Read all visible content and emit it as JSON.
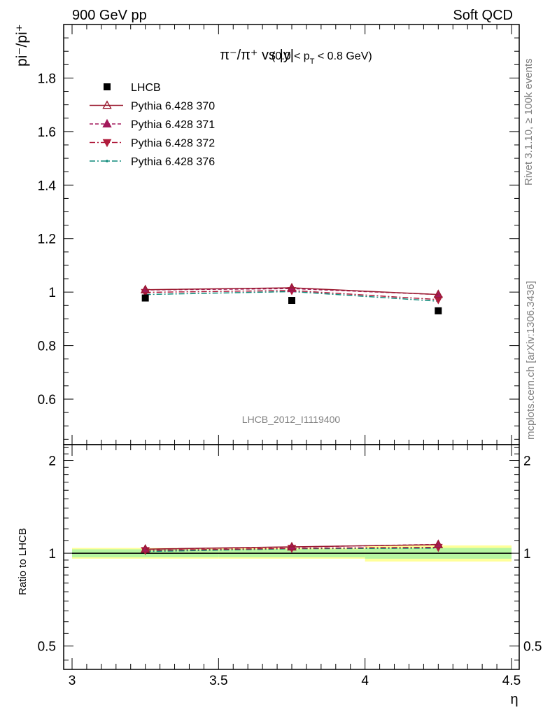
{
  "header": {
    "energy_label": "900 GeV pp",
    "process_label": "Soft QCD"
  },
  "side_text": {
    "rivet": "Rivet 3.1.10, ≥ 100k events",
    "mcplots": "mcplots.cern.ch [arXiv:1306.3436]"
  },
  "analysis_label": "LHCB_2012_I1119400",
  "colors": {
    "data": "#000000",
    "mc_370": "#9b1b30",
    "mc_371": "#a3195b",
    "mc_372": "#b01c3c",
    "mc_376": "#0e8a7a",
    "band_inner": "#b6f5a0",
    "band_outer": "#ffff99"
  },
  "chart_data": [
    {
      "type": "scatter",
      "panel": "main",
      "title": {
        "main": "π⁻/π⁺ vs |y|",
        "range": "(0.0 < p",
        "range_sub": "T",
        "range_tail": " < 0.8 GeV)"
      },
      "ylabel": "pi⁻/pi⁺",
      "xlim": [
        3.0,
        4.5
      ],
      "ylim": [
        0.43,
        2.0
      ],
      "yticks": [
        0.6,
        0.8,
        1.0,
        1.2,
        1.4,
        1.6,
        1.8
      ],
      "ytick_labels": [
        "0.6",
        "0.8",
        "1",
        "1.2",
        "1.4",
        "1.6",
        "1.8"
      ],
      "legend_position": "top-left",
      "x": [
        3.25,
        3.75,
        4.25
      ],
      "series": [
        {
          "name": "LHCB",
          "values": [
            0.978,
            0.969,
            0.93
          ],
          "marker": "square",
          "line": "none",
          "color": "#000000"
        },
        {
          "name": "Pythia 6.428 370",
          "values": [
            1.009,
            1.016,
            0.991
          ],
          "marker": "triangle-up-open",
          "line": "solid",
          "color": "#9b1b30"
        },
        {
          "name": "Pythia 6.428 371",
          "values": [
            1.008,
            1.013,
            0.991
          ],
          "marker": "triangle-up",
          "line": "dashed",
          "color": "#a3195b"
        },
        {
          "name": "Pythia 6.428 372",
          "values": [
            0.999,
            1.006,
            0.972
          ],
          "marker": "triangle-down",
          "line": "dashdot",
          "color": "#b01c3c"
        },
        {
          "name": "Pythia 6.428 376",
          "values": [
            0.991,
            1.002,
            0.966
          ],
          "marker": "dot",
          "line": "dashdot",
          "color": "#0e8a7a"
        }
      ]
    },
    {
      "type": "line",
      "panel": "ratio",
      "ylabel": "Ratio to LHCB",
      "xlabel": "η",
      "xlim": [
        3.0,
        4.5
      ],
      "xticks": [
        3.0,
        3.5,
        4.0,
        4.5
      ],
      "xtick_labels": [
        "3",
        "3.5",
        "4",
        "4.5"
      ],
      "ylim": [
        0.42,
        2.25
      ],
      "yscale": "log",
      "yticks": [
        0.5,
        1.0,
        2.0
      ],
      "ytick_labels": [
        "0.5",
        "1",
        "2"
      ],
      "x": [
        3.25,
        3.75,
        4.25
      ],
      "bins": [
        [
          3.0,
          3.5
        ],
        [
          3.5,
          4.0
        ],
        [
          4.0,
          4.5
        ]
      ],
      "band_inner": [
        0.03,
        0.03,
        0.04
      ],
      "band_outer": [
        0.04,
        0.04,
        0.06
      ],
      "series": [
        {
          "name": "Pythia 6.428 370",
          "values": [
            1.031,
            1.049,
            1.066
          ]
        },
        {
          "name": "Pythia 6.428 371",
          "values": [
            1.03,
            1.047,
            1.068
          ]
        },
        {
          "name": "Pythia 6.428 372",
          "values": [
            1.021,
            1.038,
            1.045
          ]
        },
        {
          "name": "Pythia 6.428 376",
          "values": [
            1.013,
            1.034,
            1.039
          ]
        }
      ]
    }
  ]
}
